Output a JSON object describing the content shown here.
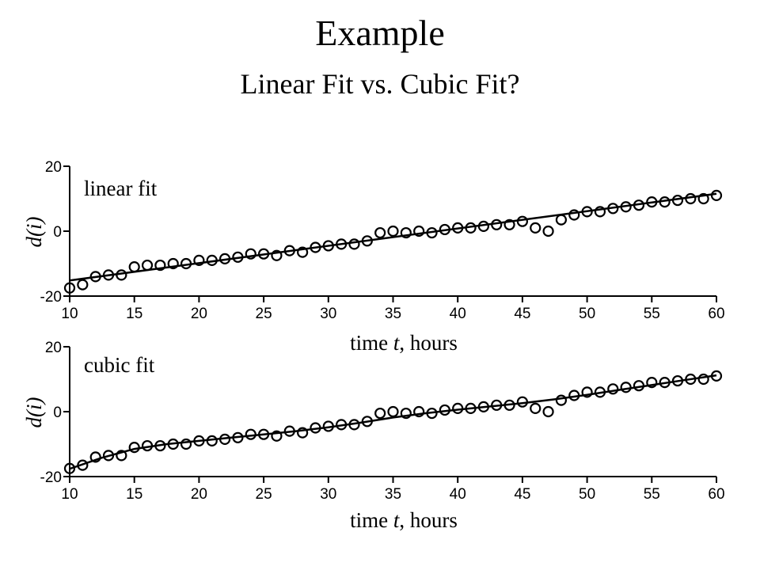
{
  "slide": {
    "title": "Example",
    "subtitle": "Linear Fit vs. Cubic Fit?"
  },
  "chart_data": [
    {
      "type": "scatter",
      "annotation": "linear fit",
      "xlabel_prefix": "time ",
      "xlabel_var": "t",
      "xlabel_suffix": ", hours",
      "ylabel": "d(i)",
      "xlim": [
        10,
        60
      ],
      "ylim": [
        -20,
        20
      ],
      "xticks": [
        10,
        15,
        20,
        25,
        30,
        35,
        40,
        45,
        50,
        55,
        60
      ],
      "yticks": [
        20,
        0,
        -20
      ],
      "grid": false,
      "series": [
        {
          "marker": "circle",
          "x": [
            10,
            11,
            12,
            13,
            14,
            15,
            16,
            17,
            18,
            19,
            20,
            21,
            22,
            23,
            24,
            25,
            26,
            27,
            28,
            29,
            30,
            31,
            32,
            33,
            34,
            35,
            36,
            37,
            38,
            39,
            40,
            41,
            42,
            43,
            44,
            45,
            46,
            47,
            48,
            49,
            50,
            51,
            52,
            53,
            54,
            55,
            56,
            57,
            58,
            59,
            60
          ],
          "y": [
            -17.5,
            -16.5,
            -14,
            -13.5,
            -13.5,
            -11,
            -10.5,
            -10.5,
            -10,
            -10,
            -9,
            -9,
            -8.5,
            -8,
            -7,
            -7,
            -7.5,
            -6,
            -6.5,
            -5,
            -4.5,
            -4,
            -4,
            -3,
            -0.5,
            0,
            -0.5,
            0,
            -0.5,
            0.5,
            1,
            1,
            1.5,
            2,
            2,
            3,
            1,
            0,
            3.5,
            5,
            6,
            6,
            7,
            7.5,
            8,
            9,
            9,
            9.5,
            10,
            10,
            11
          ]
        },
        {
          "type": "line",
          "x": [
            10,
            60
          ],
          "y": [
            -15.2,
            11.5
          ]
        }
      ]
    },
    {
      "type": "scatter",
      "annotation": "cubic fit",
      "xlabel_prefix": "time ",
      "xlabel_var": "t",
      "xlabel_suffix": ", hours",
      "ylabel": "d(i)",
      "xlim": [
        10,
        60
      ],
      "ylim": [
        -20,
        20
      ],
      "xticks": [
        10,
        15,
        20,
        25,
        30,
        35,
        40,
        45,
        50,
        55,
        60
      ],
      "yticks": [
        20,
        0,
        -20
      ],
      "grid": false,
      "series": [
        {
          "marker": "circle",
          "x": [
            10,
            11,
            12,
            13,
            14,
            15,
            16,
            17,
            18,
            19,
            20,
            21,
            22,
            23,
            24,
            25,
            26,
            27,
            28,
            29,
            30,
            31,
            32,
            33,
            34,
            35,
            36,
            37,
            38,
            39,
            40,
            41,
            42,
            43,
            44,
            45,
            46,
            47,
            48,
            49,
            50,
            51,
            52,
            53,
            54,
            55,
            56,
            57,
            58,
            59,
            60
          ],
          "y": [
            -17.5,
            -16.5,
            -14,
            -13.5,
            -13.5,
            -11,
            -10.5,
            -10.5,
            -10,
            -10,
            -9,
            -9,
            -8.5,
            -8,
            -7,
            -7,
            -7.5,
            -6,
            -6.5,
            -5,
            -4.5,
            -4,
            -4,
            -3,
            -0.5,
            0,
            -0.5,
            0,
            -0.5,
            0.5,
            1,
            1,
            1.5,
            2,
            2,
            3,
            1,
            0,
            3.5,
            5,
            6,
            6,
            7,
            7.5,
            8,
            9,
            9,
            9.5,
            10,
            10,
            11
          ]
        },
        {
          "type": "line",
          "x": [
            10,
            12.5,
            15,
            17.5,
            20,
            22.5,
            25,
            27.5,
            30,
            32.5,
            35,
            37.5,
            40,
            42.5,
            45,
            47.5,
            50,
            52.5,
            55,
            57.5,
            60
          ],
          "y": [
            -17.6,
            -14.2,
            -11.5,
            -10,
            -9,
            -8,
            -7,
            -6,
            -4.8,
            -3.4,
            -1.8,
            -0.5,
            0.6,
            1.6,
            2.6,
            3.8,
            5.2,
            6.7,
            8.2,
            9.7,
            11.2
          ]
        }
      ]
    }
  ]
}
